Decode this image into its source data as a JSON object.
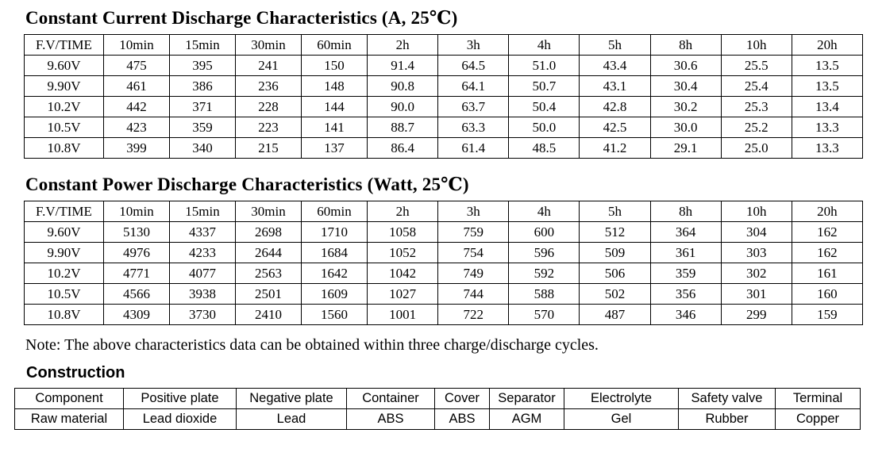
{
  "page": {
    "background_color": "#ffffff",
    "text_color": "#000000",
    "border_color": "#000000"
  },
  "current_table": {
    "title": "Constant Current Discharge Characteristics (A, 25℃)",
    "headers": [
      "F.V/TIME",
      "10min",
      "15min",
      "30min",
      "60min",
      "2h",
      "3h",
      "4h",
      "5h",
      "8h",
      "10h",
      "20h"
    ],
    "rows": [
      [
        "9.60V",
        "475",
        "395",
        "241",
        "150",
        "91.4",
        "64.5",
        "51.0",
        "43.4",
        "30.6",
        "25.5",
        "13.5"
      ],
      [
        "9.90V",
        "461",
        "386",
        "236",
        "148",
        "90.8",
        "64.1",
        "50.7",
        "43.1",
        "30.4",
        "25.4",
        "13.5"
      ],
      [
        "10.2V",
        "442",
        "371",
        "228",
        "144",
        "90.0",
        "63.7",
        "50.4",
        "42.8",
        "30.2",
        "25.3",
        "13.4"
      ],
      [
        "10.5V",
        "423",
        "359",
        "223",
        "141",
        "88.7",
        "63.3",
        "50.0",
        "42.5",
        "30.0",
        "25.2",
        "13.3"
      ],
      [
        "10.8V",
        "399",
        "340",
        "215",
        "137",
        "86.4",
        "61.4",
        "48.5",
        "41.2",
        "29.1",
        "25.0",
        "13.3"
      ]
    ]
  },
  "power_table": {
    "title": "Constant Power Discharge Characteristics (Watt, 25℃)",
    "headers": [
      "F.V/TIME",
      "10min",
      "15min",
      "30min",
      "60min",
      "2h",
      "3h",
      "4h",
      "5h",
      "8h",
      "10h",
      "20h"
    ],
    "rows": [
      [
        "9.60V",
        "5130",
        "4337",
        "2698",
        "1710",
        "1058",
        "759",
        "600",
        "512",
        "364",
        "304",
        "162"
      ],
      [
        "9.90V",
        "4976",
        "4233",
        "2644",
        "1684",
        "1052",
        "754",
        "596",
        "509",
        "361",
        "303",
        "162"
      ],
      [
        "10.2V",
        "4771",
        "4077",
        "2563",
        "1642",
        "1042",
        "749",
        "592",
        "506",
        "359",
        "302",
        "161"
      ],
      [
        "10.5V",
        "4566",
        "3938",
        "2501",
        "1609",
        "1027",
        "744",
        "588",
        "502",
        "356",
        "301",
        "160"
      ],
      [
        "10.8V",
        "4309",
        "3730",
        "2410",
        "1560",
        "1001",
        "722",
        "570",
        "487",
        "346",
        "299",
        "159"
      ]
    ]
  },
  "note": "Note: The above characteristics data can be obtained within three charge/discharge cycles.",
  "construction_table": {
    "title": "Construction",
    "headers": [
      "Component",
      "Positive plate",
      "Negative plate",
      "Container",
      "Cover",
      "Separator",
      "Electrolyte",
      "Safety valve",
      "Terminal"
    ],
    "rows": [
      [
        "Raw material",
        "Lead dioxide",
        "Lead",
        "ABS",
        "ABS",
        "AGM",
        "Gel",
        "Rubber",
        "Copper"
      ]
    ]
  }
}
